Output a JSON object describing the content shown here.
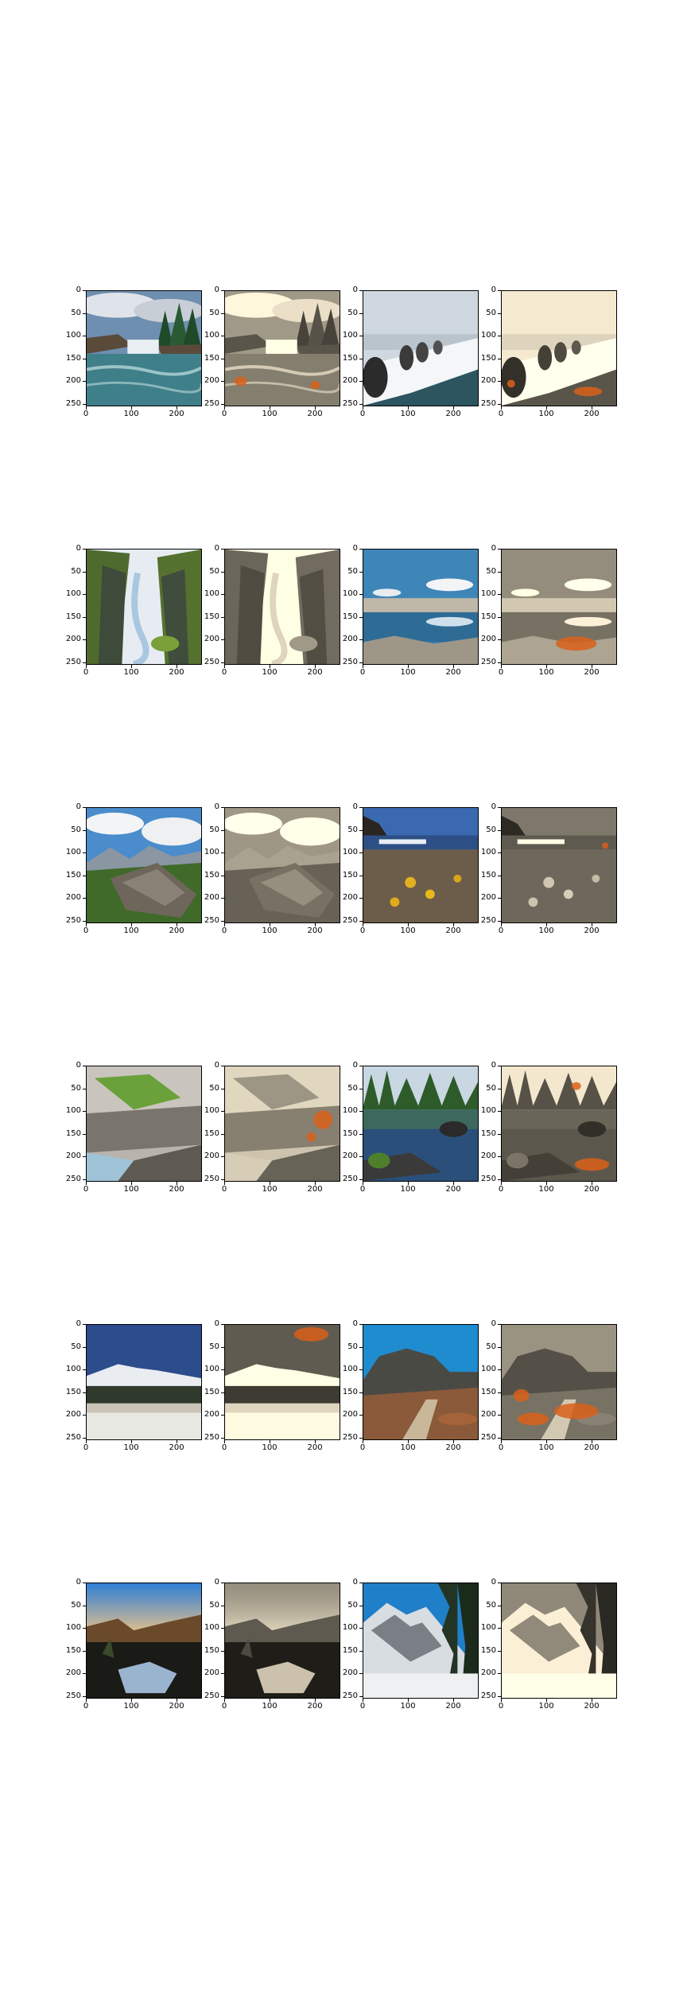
{
  "axes": {
    "y_ticks": [
      "0",
      "50",
      "100",
      "150",
      "200",
      "250"
    ],
    "x_ticks": [
      "0",
      "100",
      "200"
    ]
  },
  "panels": [
    {
      "name": "waterfall-forest-photo",
      "kind": "color",
      "scene": "waterfall"
    },
    {
      "name": "waterfall-forest-recolored-photo",
      "kind": "sepia",
      "scene": "waterfall",
      "mask": "orange"
    },
    {
      "name": "snowy-rocks-water-photo",
      "kind": "color",
      "scene": "snowrocks"
    },
    {
      "name": "snowy-rocks-water-recolored-photo",
      "kind": "sepia",
      "scene": "snowrocks",
      "mask": "orange"
    },
    {
      "name": "mossy-gorge-photo",
      "kind": "color",
      "scene": "gorge"
    },
    {
      "name": "mossy-gorge-recolored-photo",
      "kind": "sepia",
      "scene": "gorge"
    },
    {
      "name": "rocky-lake-clouds-photo",
      "kind": "color",
      "scene": "lake"
    },
    {
      "name": "rocky-lake-clouds-recolored-photo",
      "kind": "sepia",
      "scene": "lake",
      "mask": "orange"
    },
    {
      "name": "mountain-boulder-photo",
      "kind": "color",
      "scene": "boulder"
    },
    {
      "name": "mountain-boulder-recolored-photo",
      "kind": "sepia",
      "scene": "boulder"
    },
    {
      "name": "coastal-cliffs-flowers-photo",
      "kind": "color",
      "scene": "coast"
    },
    {
      "name": "coastal-cliffs-flowers-recolored-photo",
      "kind": "sepia",
      "scene": "coast",
      "mask": "orange"
    },
    {
      "name": "cliff-river-photo",
      "kind": "color",
      "scene": "cliff"
    },
    {
      "name": "cliff-river-recolored-photo",
      "kind": "sepia",
      "scene": "cliff",
      "mask": "orange"
    },
    {
      "name": "forest-lake-reflection-photo",
      "kind": "color",
      "scene": "forestlake"
    },
    {
      "name": "forest-lake-reflection-recolored-photo",
      "kind": "sepia",
      "scene": "forestlake",
      "mask": "orange"
    },
    {
      "name": "snowy-volcano-field-photo",
      "kind": "color",
      "scene": "volcano"
    },
    {
      "name": "snowy-volcano-field-recolored-photo",
      "kind": "sepia",
      "scene": "volcano",
      "mask": "orange"
    },
    {
      "name": "desert-hills-blue-sky-photo",
      "kind": "color",
      "scene": "desert"
    },
    {
      "name": "desert-hills-recolored-photo",
      "kind": "sepia",
      "scene": "desert",
      "mask": "orange"
    },
    {
      "name": "sunset-valley-snow-photo",
      "kind": "color",
      "scene": "sunset"
    },
    {
      "name": "sunset-valley-snow-recolored-photo",
      "kind": "sepia",
      "scene": "sunset"
    },
    {
      "name": "snowy-mountain-trees-photo",
      "kind": "color",
      "scene": "snowmtn"
    },
    {
      "name": "snowy-mountain-trees-recolored-photo",
      "kind": "sepia",
      "scene": "snowmtn"
    }
  ]
}
